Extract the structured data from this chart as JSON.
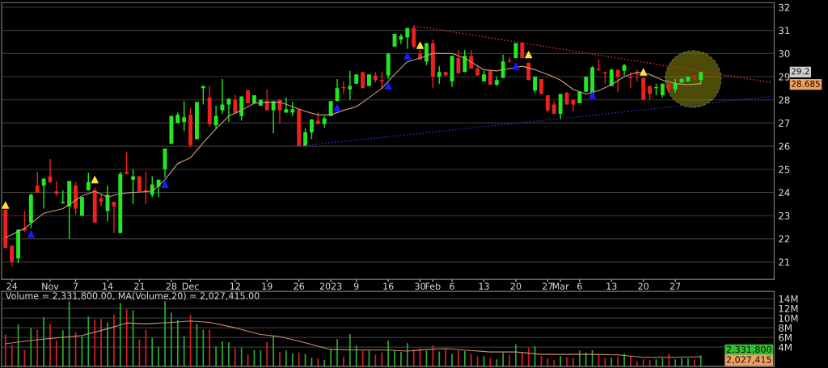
{
  "chart_data": [
    {
      "type": "candlestick",
      "categories": [
        null,
        "24",
        null,
        null,
        null,
        null,
        null,
        "Nov",
        null,
        null,
        null,
        "7",
        null,
        null,
        null,
        null,
        "14",
        null,
        null,
        null,
        null,
        "21",
        null,
        null,
        null,
        null,
        "28",
        null,
        null,
        "Dec",
        null,
        null,
        null,
        null,
        null,
        null,
        "12",
        null,
        null,
        null,
        null,
        "19",
        null,
        null,
        null,
        null,
        "26",
        null,
        null,
        null,
        null,
        "2023",
        null,
        null,
        null,
        "9",
        null,
        null,
        null,
        null,
        "16",
        null,
        null,
        null,
        null,
        "30",
        null,
        "Feb",
        null,
        null,
        "6",
        null,
        null,
        null,
        null,
        "13",
        null,
        null,
        null,
        null,
        "20",
        null,
        null,
        null,
        null,
        "27",
        null,
        "Mar",
        null,
        null,
        "6",
        null,
        null,
        null,
        null,
        "13",
        null,
        null,
        null,
        null,
        "20",
        null,
        null,
        null,
        null,
        "27",
        null,
        null,
        null,
        null,
        null,
        null,
        null,
        null,
        null,
        null,
        null,
        null,
        null,
        null,
        null
      ],
      "ohlc": [
        [
          23.25,
          23.25,
          21.6,
          21.6
        ],
        [
          21.7,
          21.7,
          20.8,
          21.0
        ],
        [
          21.15,
          22.4,
          20.95,
          22.4
        ],
        [
          22.45,
          23.2,
          22.3,
          22.35
        ],
        [
          22.7,
          23.95,
          22.45,
          23.9
        ],
        [
          24.3,
          24.9,
          24.0,
          24.0
        ],
        [
          24.3,
          24.6,
          23.3,
          24.6
        ],
        [
          24.7,
          25.45,
          24.4,
          24.45
        ],
        [
          24.05,
          24.5,
          23.85,
          23.95
        ],
        [
          23.55,
          24.1,
          23.5,
          23.6
        ],
        [
          23.4,
          24.5,
          22.0,
          24.5
        ],
        [
          24.3,
          24.45,
          23.05,
          23.3
        ],
        [
          23.0,
          23.8,
          23.0,
          23.8
        ],
        [
          24.1,
          24.85,
          24.1,
          24.45
        ],
        [
          24.1,
          24.2,
          22.7,
          22.7
        ],
        [
          23.75,
          23.9,
          23.4,
          23.6
        ],
        [
          23.2,
          24.3,
          22.75,
          23.9
        ],
        [
          23.6,
          23.6,
          22.25,
          23.4
        ],
        [
          22.25,
          24.9,
          22.25,
          24.8
        ],
        [
          24.9,
          25.75,
          24.8,
          24.8
        ],
        [
          24.55,
          25.0,
          23.5,
          24.7
        ],
        [
          24.7,
          24.7,
          24.05,
          24.05
        ],
        [
          24.1,
          24.9,
          23.5,
          24.05
        ],
        [
          23.9,
          24.7,
          23.8,
          24.35
        ],
        [
          24.25,
          24.55,
          23.8,
          24.55
        ],
        [
          25.0,
          25.9,
          24.65,
          25.9
        ],
        [
          26.1,
          27.3,
          26.1,
          27.3
        ],
        [
          27.0,
          27.45,
          27.0,
          27.35
        ],
        [
          27.05,
          27.95,
          26.65,
          27.25
        ],
        [
          27.35,
          27.65,
          25.95,
          26.05
        ],
        [
          26.3,
          27.9,
          26.3,
          27.9
        ],
        [
          28.5,
          28.6,
          27.8,
          28.6
        ],
        [
          28.1,
          28.6,
          26.85,
          26.95
        ],
        [
          26.9,
          27.75,
          26.75,
          27.3
        ],
        [
          27.55,
          28.9,
          27.4,
          27.8
        ],
        [
          27.8,
          28.05,
          27.05,
          28.05
        ],
        [
          28.0,
          28.2,
          27.45,
          27.45
        ],
        [
          27.3,
          28.15,
          27.1,
          28.15
        ],
        [
          28.4,
          28.45,
          27.85,
          27.85
        ],
        [
          27.85,
          28.2,
          27.85,
          28.2
        ],
        [
          27.75,
          28.0,
          27.75,
          28.0
        ],
        [
          27.95,
          28.45,
          27.55,
          27.55
        ],
        [
          27.55,
          27.95,
          26.55,
          27.95
        ],
        [
          28.0,
          28.0,
          27.0,
          27.55
        ],
        [
          27.45,
          28.1,
          27.45,
          27.6
        ],
        [
          27.45,
          27.9,
          27.3,
          27.6
        ],
        [
          27.6,
          27.6,
          26.0,
          26.0
        ],
        [
          26.0,
          26.75,
          26.0,
          26.6
        ],
        [
          26.6,
          27.15,
          26.3,
          27.15
        ],
        [
          27.1,
          27.45,
          26.95,
          26.95
        ],
        [
          26.95,
          27.3,
          26.8,
          27.2
        ],
        [
          27.3,
          27.95,
          27.3,
          27.95
        ],
        [
          27.95,
          28.9,
          27.95,
          28.5
        ],
        [
          28.55,
          28.8,
          28.25,
          28.5
        ],
        [
          28.45,
          29.25,
          28.0,
          28.6
        ],
        [
          28.7,
          29.1,
          28.7,
          29.1
        ],
        [
          29.2,
          29.2,
          28.5,
          28.5
        ],
        [
          28.6,
          29.1,
          28.6,
          29.1
        ],
        [
          29.05,
          29.2,
          28.75,
          28.85
        ],
        [
          28.85,
          29.2,
          28.45,
          28.8
        ],
        [
          29.05,
          30.0,
          28.9,
          30.0
        ],
        [
          30.3,
          30.85,
          30.3,
          30.85
        ],
        [
          30.6,
          30.85,
          30.4,
          30.75
        ],
        [
          30.7,
          31.1,
          30.2,
          31.1
        ],
        [
          31.1,
          31.2,
          30.2,
          30.3
        ],
        [
          30.0,
          30.15,
          29.75,
          29.75
        ],
        [
          29.65,
          30.45,
          29.5,
          30.45
        ],
        [
          30.45,
          30.6,
          28.5,
          29.0
        ],
        [
          29.0,
          29.45,
          28.7,
          29.2
        ],
        [
          29.2,
          29.2,
          29.05,
          29.05
        ],
        [
          28.8,
          29.9,
          28.55,
          29.9
        ],
        [
          29.8,
          30.15,
          29.15,
          29.15
        ],
        [
          29.2,
          30.15,
          29.2,
          29.9
        ],
        [
          29.9,
          30.15,
          29.35,
          29.35
        ],
        [
          29.35,
          29.45,
          29.05,
          29.05
        ],
        [
          28.8,
          29.25,
          28.8,
          29.1
        ],
        [
          29.25,
          29.25,
          28.65,
          28.65
        ],
        [
          28.65,
          29.0,
          28.6,
          28.85
        ],
        [
          28.95,
          29.95,
          28.95,
          29.65
        ],
        [
          29.7,
          29.85,
          29.6,
          29.65
        ],
        [
          29.8,
          30.45,
          29.8,
          30.45
        ],
        [
          30.45,
          30.5,
          29.8,
          29.8
        ],
        [
          29.6,
          29.6,
          28.85,
          28.85
        ],
        [
          28.4,
          29.0,
          28.3,
          29.0
        ],
        [
          28.9,
          28.9,
          28.25,
          28.25
        ],
        [
          28.2,
          28.2,
          27.45,
          27.55
        ],
        [
          27.8,
          27.95,
          27.4,
          27.4
        ],
        [
          27.4,
          28.25,
          27.15,
          28.25
        ],
        [
          28.3,
          28.35,
          27.8,
          27.8
        ],
        [
          28.0,
          28.0,
          27.5,
          27.8
        ],
        [
          27.85,
          28.35,
          27.85,
          28.35
        ],
        [
          28.35,
          29.0,
          28.35,
          29.0
        ],
        [
          28.25,
          29.45,
          28.25,
          29.4
        ],
        [
          29.35,
          29.75,
          29.25,
          29.3
        ],
        [
          29.2,
          29.2,
          28.7,
          29.15
        ],
        [
          28.6,
          29.35,
          28.6,
          29.3
        ],
        [
          29.3,
          29.3,
          28.35,
          29.0
        ],
        [
          29.25,
          29.55,
          29.05,
          29.5
        ],
        [
          29.0,
          29.2,
          28.5,
          28.95
        ],
        [
          29.15,
          29.3,
          28.8,
          29.1
        ],
        [
          28.95,
          28.95,
          28.0,
          28.0
        ],
        [
          28.6,
          28.6,
          28.0,
          28.25
        ],
        [
          28.5,
          28.7,
          28.2,
          28.55
        ],
        [
          28.2,
          28.7,
          28.1,
          28.7
        ],
        [
          28.7,
          28.7,
          28.3,
          28.45
        ],
        [
          28.45,
          28.9,
          28.3,
          28.7
        ],
        [
          28.75,
          28.95,
          28.75,
          28.9
        ],
        [
          28.8,
          29.0,
          28.8,
          29.0
        ],
        [
          29.0,
          29.1,
          28.85,
          28.95
        ],
        [
          28.85,
          29.2,
          28.7,
          29.2
        ],
        null,
        null,
        null,
        null,
        null,
        null,
        null,
        null,
        null,
        null,
        null
      ],
      "colors": [
        "#ee2020",
        "#ee2020",
        "#22e822",
        "#ee2020",
        "#22e822",
        "#ee2020",
        "#22e822",
        "#ee2020",
        "#ee2020",
        "#22e822",
        "#22e822",
        "#ee2020",
        "#22e822",
        "#22e822",
        "#ee2020",
        "#ee2020",
        "#22e822",
        "#ee2020",
        "#22e822",
        "#ee2020",
        "#22e822",
        "#ee2020",
        "#ee2020",
        "#22e822",
        "#22e822",
        "#22e822",
        "#22e822",
        "#22e822",
        "#22e822",
        "#ee2020",
        "#22e822",
        "#22e822",
        "#ee2020",
        "#22e822",
        "#22e822",
        "#22e822",
        "#ee2020",
        "#22e822",
        "#ee2020",
        "#22e822",
        "#22e822",
        "#ee2020",
        "#22e822",
        "#ee2020",
        "#22e822",
        "#22e822",
        "#ee2020",
        "#22e822",
        "#22e822",
        "#ee2020",
        "#22e822",
        "#22e822",
        "#22e822",
        "#ee2020",
        "#22e822",
        "#22e822",
        "#ee2020",
        "#22e822",
        "#ee2020",
        "#ee2020",
        "#22e822",
        "#22e822",
        "#22e822",
        "#22e822",
        "#ee2020",
        "#ee2020",
        "#22e822",
        "#ee2020",
        "#22e822",
        "#ee2020",
        "#22e822",
        "#ee2020",
        "#22e822",
        "#ee2020",
        "#ee2020",
        "#22e822",
        "#ee2020",
        "#22e822",
        "#22e822",
        "#ee2020",
        "#22e822",
        "#ee2020",
        "#ee2020",
        "#22e822",
        "#ee2020",
        "#ee2020",
        "#ee2020",
        "#22e822",
        "#ee2020",
        "#ee2020",
        "#22e822",
        "#22e822",
        "#22e822",
        "#ee2020",
        "#ee2020",
        "#22e822",
        "#ee2020",
        "#22e822",
        "#ee2020",
        "#ee2020",
        "#ee2020",
        "#ee2020",
        "#22e822",
        "#22e822",
        "#ee2020",
        "#22e822",
        "#22e822",
        "#22e822",
        "#ee2020",
        "#22e822",
        null,
        null,
        null,
        null,
        null,
        null,
        null,
        null,
        null,
        null,
        null
      ],
      "series": [
        {
          "type": "line",
          "color": "#c8a080",
          "values": [
            22.05,
            null,
            null,
            22.45,
            null,
            null,
            23.1,
            null,
            null,
            23.3,
            null,
            null,
            23.85,
            null,
            24.05,
            null,
            23.8,
            null,
            23.95,
            null,
            24.0,
            null,
            null,
            24.05,
            null,
            24.55,
            null,
            25.25,
            null,
            25.5,
            null,
            26.15,
            null,
            26.75,
            null,
            27.3,
            null,
            27.55,
            null,
            27.85,
            null,
            27.9,
            null,
            27.9,
            null,
            27.7,
            null,
            27.5,
            null,
            27.35,
            null,
            27.35,
            null,
            27.55,
            null,
            27.7,
            null,
            28.1,
            null,
            28.5,
            null,
            29.1,
            null,
            29.65,
            null,
            29.8,
            null,
            30.0,
            null,
            null,
            30.0,
            null,
            29.8,
            null,
            null,
            29.3,
            null,
            29.25,
            null,
            29.35,
            null,
            29.45,
            null,
            29.3,
            null,
            29.1,
            null,
            28.85,
            null,
            28.45,
            null,
            28.25,
            null,
            28.4,
            null,
            28.65,
            null,
            29.0,
            null,
            29.2,
            null,
            29.1,
            null,
            28.85,
            null,
            28.7,
            null,
            28.65,
            null,
            28.7,
            null,
            null,
            null,
            null,
            null,
            null,
            null,
            null,
            null,
            null,
            null
          ]
        },
        {
          "type": "line",
          "color": "#d42a2a",
          "line_style": "dotted",
          "values": [
            null,
            null,
            null,
            null,
            null,
            null,
            null,
            null,
            null,
            null,
            null,
            null,
            null,
            null,
            null,
            null,
            null,
            null,
            null,
            null,
            null,
            null,
            null,
            null,
            null,
            null,
            null,
            null,
            null,
            null,
            null,
            null,
            null,
            null,
            null,
            null,
            null,
            null,
            null,
            null,
            null,
            null,
            null,
            null,
            null,
            null,
            null,
            null,
            null,
            null,
            null,
            null,
            null,
            null,
            null,
            null,
            null,
            null,
            null,
            null,
            null,
            null,
            null,
            null,
            31.2,
            null,
            null,
            null,
            null,
            null,
            null,
            null,
            null,
            null,
            null,
            null,
            null,
            null,
            null,
            null,
            null,
            null,
            null,
            null,
            null,
            null,
            null,
            null,
            null,
            null,
            null,
            null,
            null,
            null,
            null,
            null,
            null,
            null,
            null,
            null,
            null,
            null,
            null,
            null,
            null,
            null,
            null,
            null,
            null,
            null,
            null,
            null,
            null,
            null,
            null,
            null,
            null,
            null,
            null,
            null,
            28.75
          ]
        },
        {
          "type": "line",
          "color": "#2a2ad0",
          "line_style": "dotted",
          "values": [
            null,
            null,
            null,
            null,
            null,
            null,
            null,
            null,
            null,
            null,
            null,
            null,
            null,
            null,
            null,
            null,
            null,
            null,
            null,
            null,
            null,
            null,
            null,
            null,
            null,
            null,
            null,
            null,
            null,
            null,
            null,
            null,
            null,
            null,
            null,
            null,
            null,
            null,
            null,
            null,
            null,
            null,
            null,
            null,
            null,
            null,
            26.0,
            null,
            null,
            null,
            null,
            null,
            null,
            null,
            null,
            null,
            null,
            null,
            null,
            null,
            null,
            null,
            null,
            null,
            null,
            null,
            null,
            null,
            null,
            null,
            null,
            null,
            null,
            null,
            null,
            null,
            null,
            null,
            null,
            null,
            null,
            null,
            null,
            null,
            null,
            null,
            null,
            null,
            null,
            null,
            null,
            null,
            null,
            null,
            null,
            null,
            null,
            null,
            null,
            null,
            null,
            null,
            null,
            null,
            null,
            null,
            null,
            null,
            null,
            null,
            null,
            null,
            null,
            null,
            null,
            null,
            null,
            null,
            null,
            null,
            28.15
          ]
        },
        {
          "type": "scatter",
          "color": "#1a1aff",
          "marker": "triangle",
          "values": [
            null,
            null,
            null,
            null,
            22.2,
            null,
            null,
            null,
            null,
            null,
            null,
            null,
            null,
            null,
            null,
            null,
            null,
            null,
            null,
            null,
            null,
            null,
            null,
            null,
            null,
            24.35,
            null,
            null,
            null,
            null,
            null,
            null,
            null,
            null,
            null,
            null,
            null,
            null,
            null,
            null,
            null,
            null,
            null,
            null,
            null,
            null,
            null,
            null,
            null,
            null,
            null,
            null,
            27.65,
            null,
            null,
            null,
            null,
            null,
            null,
            null,
            28.6,
            null,
            null,
            29.9,
            null,
            null,
            null,
            null,
            null,
            null,
            null,
            null,
            null,
            null,
            null,
            null,
            null,
            null,
            null,
            null,
            29.45,
            null,
            null,
            null,
            null,
            null,
            null,
            null,
            null,
            null,
            null,
            null,
            28.2,
            null,
            null,
            null,
            null,
            null,
            null,
            null,
            null,
            null,
            null,
            null,
            null,
            null,
            null,
            null,
            null,
            null,
            null,
            null,
            null,
            null,
            null,
            null,
            null,
            null,
            null,
            null,
            null
          ]
        },
        {
          "type": "scatter",
          "color": "#ffe040",
          "marker": "triangle",
          "values": [
            23.45,
            null,
            null,
            null,
            null,
            null,
            null,
            null,
            null,
            null,
            null,
            null,
            null,
            null,
            24.55,
            null,
            null,
            null,
            null,
            null,
            null,
            null,
            null,
            null,
            null,
            null,
            null,
            null,
            null,
            null,
            null,
            null,
            null,
            null,
            null,
            null,
            null,
            null,
            null,
            null,
            null,
            null,
            null,
            null,
            null,
            null,
            null,
            null,
            null,
            null,
            null,
            null,
            null,
            null,
            null,
            null,
            null,
            null,
            null,
            null,
            null,
            null,
            null,
            null,
            null,
            30.35,
            null,
            null,
            null,
            null,
            null,
            null,
            null,
            null,
            null,
            null,
            null,
            null,
            null,
            null,
            null,
            null,
            29.95,
            null,
            null,
            null,
            null,
            null,
            null,
            null,
            null,
            null,
            null,
            null,
            null,
            null,
            null,
            null,
            null,
            null,
            29.2,
            null,
            null,
            null,
            null,
            null,
            null,
            null,
            null,
            null,
            null,
            null,
            null,
            null,
            null,
            null,
            null,
            null,
            null,
            null,
            null
          ]
        }
      ],
      "ylim": [
        20.25,
        32.2
      ],
      "yticks": [
        21,
        22,
        23,
        24,
        25,
        26,
        27,
        28,
        29,
        30,
        31,
        32
      ],
      "grid": "y",
      "annotations": [
        "29.2",
        "28.685"
      ]
    },
    {
      "type": "bar",
      "title": "Volume = 2,331,800.00, MA(Volume,20) = 2,027,415.00",
      "categories": [
        null,
        null,
        null,
        null,
        null,
        null,
        null,
        null,
        null,
        null,
        null,
        null,
        null,
        null,
        null,
        null,
        null,
        null,
        null,
        null,
        null,
        null,
        null,
        null,
        null,
        null,
        null,
        null,
        null,
        null,
        null,
        null,
        null,
        null,
        null,
        null,
        null,
        null,
        null,
        null,
        null,
        null,
        null,
        null,
        null,
        null,
        null,
        null,
        null,
        null,
        null,
        null,
        null,
        null,
        null,
        null,
        null,
        null,
        null,
        null,
        null,
        null,
        null,
        null,
        null,
        null,
        null,
        null,
        null,
        null,
        null,
        null,
        null,
        null,
        null,
        null,
        null,
        null,
        null,
        null,
        null,
        null,
        null,
        null,
        null,
        null,
        null,
        null,
        null,
        null,
        null,
        null,
        null,
        null,
        null,
        null,
        null,
        null,
        null,
        null,
        null,
        null,
        null,
        null,
        null,
        null,
        null,
        null,
        null,
        null,
        null,
        null,
        null,
        null,
        null,
        null,
        null,
        null,
        null,
        null,
        null
      ],
      "series": [
        {
          "type": "bar",
          "colors": [
            "#d42020",
            "#d42020",
            "#2fa82f",
            "#d42020",
            "#2fa82f",
            "#d42020",
            "#2fa82f",
            "#d42020",
            "#d42020",
            "#2fa82f",
            "#2fa82f",
            "#d42020",
            "#2fa82f",
            "#2fa82f",
            "#d42020",
            "#d42020",
            "#2fa82f",
            "#d42020",
            "#2fa82f",
            "#d42020",
            "#2fa82f",
            "#d42020",
            "#d42020",
            "#2fa82f",
            "#2fa82f",
            "#2fa82f",
            "#2fa82f",
            "#2fa82f",
            "#2fa82f",
            "#d42020",
            "#2fa82f",
            "#2fa82f",
            "#d42020",
            "#2fa82f",
            "#2fa82f",
            "#2fa82f",
            "#d42020",
            "#2fa82f",
            "#d42020",
            "#2fa82f",
            "#2fa82f",
            "#d42020",
            "#2fa82f",
            "#d42020",
            "#2fa82f",
            "#2fa82f",
            "#d42020",
            "#2fa82f",
            "#2fa82f",
            "#d42020",
            "#2fa82f",
            "#2fa82f",
            "#2fa82f",
            "#d42020",
            "#2fa82f",
            "#2fa82f",
            "#d42020",
            "#2fa82f",
            "#d42020",
            "#d42020",
            "#2fa82f",
            "#2fa82f",
            "#2fa82f",
            "#2fa82f",
            "#d42020",
            "#d42020",
            "#2fa82f",
            "#d42020",
            "#2fa82f",
            "#d42020",
            "#2fa82f",
            "#d42020",
            "#2fa82f",
            "#d42020",
            "#d42020",
            "#2fa82f",
            "#d42020",
            "#2fa82f",
            "#2fa82f",
            "#d42020",
            "#2fa82f",
            "#d42020",
            "#d42020",
            "#2fa82f",
            "#d42020",
            "#d42020",
            "#d42020",
            "#2fa82f",
            "#d42020",
            "#d42020",
            "#2fa82f",
            "#2fa82f",
            "#2fa82f",
            "#d42020",
            "#d42020",
            "#2fa82f",
            "#d42020",
            "#2fa82f",
            "#d42020",
            "#d42020",
            "#d42020",
            "#d42020",
            "#2fa82f",
            "#2fa82f",
            "#d42020",
            "#2fa82f",
            "#2fa82f",
            "#2fa82f",
            "#d42020",
            "#2fa82f",
            null,
            null,
            null,
            null,
            null,
            null,
            null,
            null,
            null,
            null,
            null
          ],
          "values": [
            6.6,
            4.5,
            8.7,
            3.4,
            8.0,
            7.6,
            10.2,
            8.8,
            5.3,
            7.5,
            13.5,
            7.1,
            6.3,
            10.3,
            9.7,
            9.8,
            9.1,
            10.7,
            13.1,
            11.8,
            11.6,
            5.6,
            7.6,
            5.9,
            4.1,
            13.5,
            11.1,
            9.6,
            6.3,
            10.7,
            8.8,
            7.6,
            7.6,
            4.1,
            5.2,
            5.0,
            3.8,
            3.9,
            2.5,
            3.4,
            3.3,
            5.1,
            6.3,
            3.0,
            3.3,
            2.7,
            2.9,
            2.6,
            1.8,
            1.7,
            1.4,
            3.6,
            5.7,
            2.0,
            6.7,
            4.3,
            3.3,
            3.3,
            2.5,
            2.9,
            5.3,
            3.3,
            3.0,
            4.8,
            3.4,
            3.8,
            3.3,
            4.4,
            3.1,
            3.6,
            2.6,
            3.3,
            3.2,
            2.6,
            2.1,
            2.1,
            1.8,
            1.5,
            2.8,
            2.4,
            4.6,
            3.0,
            3.9,
            4.2,
            2.2,
            1.7,
            1.3,
            2.2,
            1.9,
            1.8,
            3.3,
            2.9,
            3.4,
            2.5,
            1.7,
            1.8,
            2.0,
            2.7,
            2.2,
            1.1,
            1.5,
            1.3,
            1.5,
            1.7,
            2.6,
            1.5,
            1.7,
            1.7,
            1.4,
            2.33,
            null,
            null,
            null,
            null,
            null,
            null,
            null,
            null,
            null,
            null,
            null
          ]
        },
        {
          "type": "line",
          "color": "#c89070",
          "values": [
            4.7,
            null,
            null,
            null,
            5.4,
            null,
            null,
            null,
            5.9,
            null,
            null,
            null,
            6.4,
            null,
            null,
            null,
            7.8,
            null,
            null,
            9.0,
            null,
            null,
            8.8,
            null,
            null,
            null,
            9.1,
            null,
            null,
            9.4,
            null,
            null,
            9.1,
            null,
            null,
            null,
            8.0,
            null,
            null,
            null,
            6.6,
            null,
            null,
            6.2,
            null,
            null,
            null,
            4.9,
            null,
            null,
            null,
            3.5,
            null,
            null,
            null,
            3.4,
            null,
            null,
            null,
            null,
            3.4,
            null,
            null,
            3.2,
            null,
            null,
            3.5,
            null,
            null,
            3.7,
            null,
            null,
            3.4,
            null,
            null,
            null,
            3.0,
            null,
            null,
            null,
            3.0,
            null,
            null,
            null,
            2.5,
            null,
            null,
            null,
            2.5,
            null,
            null,
            null,
            2.5,
            null,
            null,
            null,
            2.4,
            null,
            null,
            null,
            1.9,
            null,
            null,
            null,
            null,
            1.9,
            null,
            null,
            null,
            2.03,
            null,
            null,
            null,
            null,
            null,
            null,
            null,
            null,
            null,
            null,
            null
          ]
        }
      ],
      "ylim": [
        0,
        15.5
      ],
      "yticks": [
        {
          "value": 4,
          "label": "4M"
        },
        {
          "value": 6,
          "label": "6M"
        },
        {
          "value": 8,
          "label": "8M"
        },
        {
          "value": 10,
          "label": "10M"
        },
        {
          "value": 12,
          "label": "12M"
        },
        {
          "value": 14,
          "label": "14M"
        }
      ],
      "grid": "y",
      "tick_labels": "y",
      "annotations": [
        "2,331,800",
        "2,027,415"
      ]
    }
  ]
}
